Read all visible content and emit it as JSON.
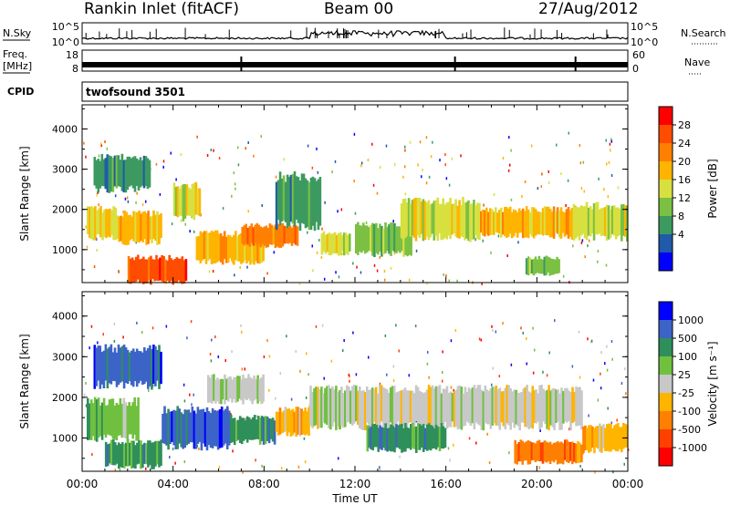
{
  "header": {
    "title": "Rankin Inlet (fitACF)",
    "beam": "Beam 00",
    "date": "27/Aug/2012"
  },
  "strips": {
    "nsky_label": "N.Sky",
    "nsky_ticks": [
      "10^5",
      "10^0"
    ],
    "nsearch_label": "N.Search",
    "nsearch_ticks": [
      "10^5",
      "10^0"
    ],
    "freq_label": "Freq.",
    "freq_unit": "[MHz]",
    "freq_ticks": [
      "18",
      "8"
    ],
    "nave_label": "Nave",
    "nave_ticks": [
      "60",
      "0"
    ],
    "cpid_label": "CPID",
    "cpid_value": "twofsound 3501"
  },
  "chart_data": [
    {
      "type": "heatmap",
      "name": "power-panel",
      "ylabel": "Slant Range [km]",
      "ylim": [
        180,
        4600
      ],
      "y_ticks": [
        1000,
        2000,
        3000,
        4000
      ],
      "xlim_hours": [
        0,
        24
      ],
      "colorbar": {
        "label": "Power [dB]",
        "ticks": [
          "28",
          "24",
          "20",
          "16",
          "12",
          "8",
          "4"
        ],
        "colors": [
          "#ff0000",
          "#ff4d00",
          "#ff8000",
          "#ffb400",
          "#d8e040",
          "#7bc043",
          "#3c9a60",
          "#205aa8",
          "#0000ff"
        ]
      },
      "regions": [
        {
          "t0": 0.2,
          "t1": 1.5,
          "r0": 1300,
          "r1": 2000,
          "level": 16
        },
        {
          "t0": 1.5,
          "t1": 3.5,
          "r0": 1200,
          "r1": 1900,
          "level": 20
        },
        {
          "t0": 2.0,
          "t1": 4.6,
          "r0": 200,
          "r1": 800,
          "level": 28
        },
        {
          "t0": 4.0,
          "t1": 5.2,
          "r0": 1800,
          "r1": 2600,
          "level": 14
        },
        {
          "t0": 5.0,
          "t1": 8.0,
          "r0": 700,
          "r1": 1400,
          "level": 20
        },
        {
          "t0": 7.0,
          "t1": 9.5,
          "r0": 1100,
          "r1": 1600,
          "level": 24
        },
        {
          "t0": 8.5,
          "t1": 10.5,
          "r0": 1600,
          "r1": 2800,
          "level": 6
        },
        {
          "t0": 10.5,
          "t1": 11.8,
          "r0": 900,
          "r1": 1400,
          "level": 14
        },
        {
          "t0": 12.0,
          "t1": 14.5,
          "r0": 900,
          "r1": 1600,
          "level": 10
        },
        {
          "t0": 14.0,
          "t1": 17.5,
          "r0": 1300,
          "r1": 2200,
          "level": 14
        },
        {
          "t0": 17.5,
          "t1": 21.5,
          "r0": 1350,
          "r1": 2000,
          "level": 20
        },
        {
          "t0": 21.5,
          "t1": 24.0,
          "r0": 1300,
          "r1": 2100,
          "level": 16
        },
        {
          "t0": 19.5,
          "t1": 21.0,
          "r0": 400,
          "r1": 800,
          "level": 10
        },
        {
          "t0": 0.5,
          "t1": 3.0,
          "r0": 2500,
          "r1": 3300,
          "level": 6
        }
      ]
    },
    {
      "type": "heatmap",
      "name": "velocity-panel",
      "ylabel": "Slant Range [km]",
      "ylim": [
        180,
        4600
      ],
      "y_ticks": [
        1000,
        2000,
        3000,
        4000
      ],
      "xlim_hours": [
        0,
        24
      ],
      "x_ticks": [
        "00:00",
        "04:00",
        "08:00",
        "12:00",
        "16:00",
        "20:00",
        "00:00"
      ],
      "xlabel": "Time UT",
      "colorbar": {
        "label": "Velocity [m s⁻¹]",
        "ticks": [
          "1000",
          "500",
          "100",
          "25",
          "-25",
          "-100",
          "-500",
          "-1000"
        ],
        "colors": [
          "#0000ff",
          "#3c64c8",
          "#2f8f5a",
          "#70c040",
          "#c8c8c8",
          "#ffb400",
          "#ff8000",
          "#ff4000",
          "#ff0000"
        ]
      },
      "regions": [
        {
          "t0": 0.2,
          "t1": 2.5,
          "r0": 1000,
          "r1": 1900,
          "level": 25
        },
        {
          "t0": 1.0,
          "t1": 3.5,
          "r0": 300,
          "r1": 900,
          "level": 100
        },
        {
          "t0": 3.5,
          "t1": 6.5,
          "r0": 800,
          "r1": 1700,
          "level": 500
        },
        {
          "t0": 6.5,
          "t1": 8.5,
          "r0": 900,
          "r1": 1500,
          "level": 100
        },
        {
          "t0": 8.5,
          "t1": 10.0,
          "r0": 1100,
          "r1": 1700,
          "level": -100
        },
        {
          "t0": 10.0,
          "t1": 14.0,
          "r0": 1300,
          "r1": 2200,
          "level": 0
        },
        {
          "t0": 14.0,
          "t1": 22.0,
          "r0": 1300,
          "r1": 2200,
          "level": 0
        },
        {
          "t0": 12.5,
          "t1": 16.0,
          "r0": 700,
          "r1": 1300,
          "level": 100
        },
        {
          "t0": 19.0,
          "t1": 22.0,
          "r0": 400,
          "r1": 900,
          "level": -500
        },
        {
          "t0": 22.0,
          "t1": 24.0,
          "r0": 700,
          "r1": 1300,
          "level": -100
        },
        {
          "t0": 0.5,
          "t1": 3.5,
          "r0": 2300,
          "r1": 3200,
          "level": 500
        },
        {
          "t0": 5.5,
          "t1": 8.0,
          "r0": 1900,
          "r1": 2500,
          "level": 0
        }
      ]
    }
  ]
}
